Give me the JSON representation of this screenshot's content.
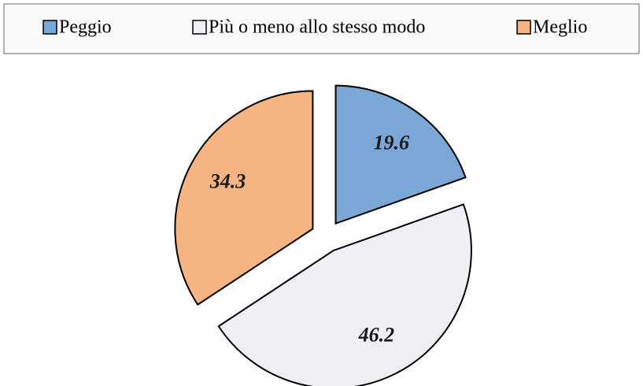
{
  "chart_data": {
    "type": "pie",
    "categories": [
      "Peggio",
      "Più o meno allo stesso modo",
      "Meglio"
    ],
    "values": [
      19.6,
      46.2,
      34.3
    ],
    "colors": [
      "#7ba7d7",
      "#eff0f6",
      "#f5b482"
    ],
    "legend": "top"
  }
}
